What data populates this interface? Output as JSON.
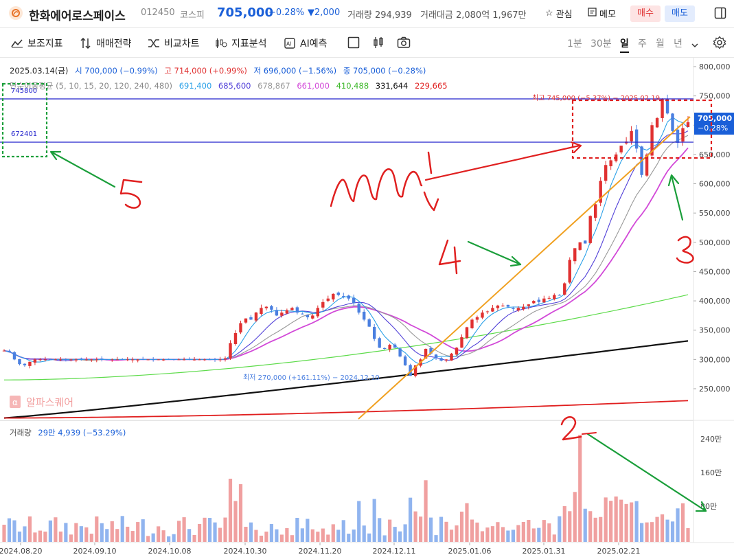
{
  "header": {
    "name": "한화에어로스페이스",
    "code": "012450",
    "market": "코스피",
    "price": "705,000",
    "change_pct": "−0.28%",
    "change_abs": "▼2,000",
    "volume": "거래량 294,939",
    "amount": "거래대금 2,080억 1,967만",
    "watch_label": "관심",
    "memo_label": "메모",
    "sell_label": "매수",
    "buy_label": "매도"
  },
  "toolbar": {
    "items": [
      "보조지표",
      "매매전략",
      "비교차트",
      "지표분석",
      "AI예측"
    ],
    "periods": [
      "1분",
      "30분",
      "일",
      "주",
      "월",
      "년"
    ],
    "active_period": "일"
  },
  "info": {
    "date": "2025.03.14(금)",
    "open": "시 700,000 (−0.99%)",
    "high": "고 714,000 (+0.99%)",
    "low": "저 696,000 (−1.56%)",
    "close": "종 705,000 (−0.28%)",
    "ma_label": "단순이동평균 (5, 10, 15, 20, 120, 240, 480)",
    "ma_values": [
      "691,400",
      "685,600",
      "678,867",
      "661,000",
      "410,488",
      "331,644",
      "229,665"
    ]
  },
  "annotations": {
    "high_label": "최고 745,000 (−5.37%) − 2025.02.19",
    "low_label": "최저 270,000 (+161.11%) − 2024.12.10",
    "hline1_value": "745800",
    "hline2_value": "672401",
    "last_price": "705,000",
    "last_change": "−0.28%",
    "watermark": "알파스퀘어",
    "handwritten": [
      "5",
      "4",
      "3",
      "2",
      "m!"
    ]
  },
  "volume_panel": {
    "label": "거래량",
    "value": "29만 4,939 (−53.29%)",
    "ticks": [
      "240만",
      "160만",
      "80만"
    ]
  },
  "colors": {
    "up": "#e03131",
    "down": "#4a7fe0",
    "ma5": "#29a0e8",
    "ma10": "#5140d8",
    "ma15": "#999999",
    "ma20": "#d249d8",
    "ma120": "#5ddb4a",
    "ma240": "#111111",
    "ma480": "#e01e1e",
    "hline": "#2222cc",
    "trend": "#f0a020"
  },
  "chart_data": {
    "type": "candlestick",
    "y_ticks": [
      "800,000",
      "750,000",
      "700,000",
      "650,000",
      "600,000",
      "550,000",
      "500,000",
      "450,000",
      "400,000",
      "350,000",
      "300,000",
      "250,000"
    ],
    "y_values": [
      800000,
      750000,
      700000,
      650000,
      600000,
      550000,
      500000,
      450000,
      400000,
      350000,
      300000,
      250000
    ],
    "x_ticks": [
      "2024.08.20",
      "2024.09.10",
      "2024.10.08",
      "2024.10.30",
      "2024.11.20",
      "2024.12.11",
      "2025.01.06",
      "2025.01.31",
      "2025.02.21"
    ],
    "close_series_approx": [
      315000,
      312000,
      300000,
      292000,
      290000,
      296000,
      300000,
      300000,
      300000,
      300000,
      300000,
      300000,
      300000,
      300000,
      300000,
      300000,
      300000,
      300000,
      300000,
      300000,
      300000,
      300000,
      300000,
      300000,
      300000,
      300000,
      300000,
      300000,
      300000,
      300000,
      300000,
      300000,
      300000,
      300000,
      300000,
      300000,
      300000,
      300000,
      300000,
      300000,
      300000,
      300000,
      300000,
      302000,
      328000,
      345000,
      362000,
      370000,
      368000,
      380000,
      388000,
      390000,
      385000,
      375000,
      380000,
      384000,
      388000,
      380000,
      378000,
      372000,
      375000,
      388000,
      398000,
      404000,
      412000,
      410000,
      408000,
      404000,
      396000,
      380000,
      368000,
      356000,
      335000,
      320000,
      318000,
      325000,
      320000,
      305000,
      290000,
      272000,
      290000,
      300000,
      318000,
      310000,
      302000,
      298000,
      300000,
      310000,
      320000,
      338000,
      355000,
      368000,
      372000,
      380000,
      382000,
      388000,
      392000,
      392000,
      390000,
      386000,
      388000,
      390000,
      394000,
      400000,
      398000,
      404000,
      405000,
      410000,
      410000,
      430000,
      470000,
      490000,
      500000,
      498000,
      545000,
      565000,
      605000,
      632000,
      640000,
      650000,
      665000,
      672000,
      690000,
      660000,
      615000,
      650000,
      700000,
      712000,
      745000,
      720000,
      690000,
      670000,
      695000,
      705000
    ],
    "ma120_range": [
      265000,
      410488
    ],
    "ma240_range": [
      200000,
      331644
    ],
    "ma480_range": [
      200000,
      229665
    ]
  }
}
